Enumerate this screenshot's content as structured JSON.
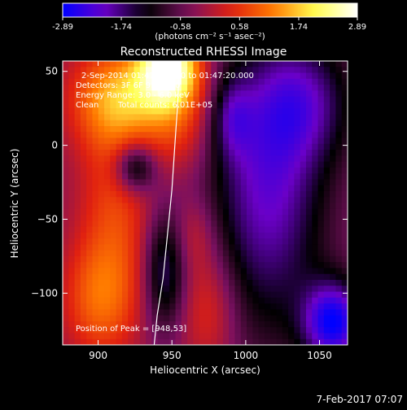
{
  "colorbar": {
    "tick_labels": [
      "-2.89",
      "-1.74",
      "-0.58",
      "0.58",
      "1.74",
      "2.89"
    ],
    "min": -2.89,
    "max": 2.89,
    "unit_label": "(photons cm⁻² s⁻¹ asec⁻²)",
    "colors": [
      "#0000ff",
      "#6a00c8",
      "#000000",
      "#7a1060",
      "#e02010",
      "#ff7a00",
      "#ffff50",
      "#ffffff"
    ]
  },
  "chart_data": {
    "type": "heatmap",
    "title": "Reconstructed RHESSI Image",
    "xlabel": "Heliocentric X (arcsec)",
    "ylabel": "Heliocentric Y (arcsec)",
    "xlim": [
      876,
      1069
    ],
    "ylim": [
      -135,
      57
    ],
    "x_ticks": [
      900,
      950,
      1000,
      1050
    ],
    "y_ticks": [
      50,
      0,
      -50,
      -100
    ],
    "x_tick_labels": [
      "900",
      "950",
      "1000",
      "1050"
    ],
    "y_tick_labels": [
      "50",
      "0",
      "−50",
      "−100"
    ],
    "annotations": [
      "2-Sep-2014 01:47:20.000 to 01:47:20.000",
      "Detectors: 3F 6F 9F, Att 0",
      "Energy Range: 3.0 - 6.0 keV",
      "Clean",
      "Total counts: 6.01E+05"
    ],
    "peak_label": "Position of Peak = [948,53]",
    "peak": [
      948,
      53
    ],
    "limb_line": [
      [
        955,
        57
      ],
      [
        954,
        30
      ],
      [
        952,
        0
      ],
      [
        950,
        -30
      ],
      [
        947,
        -60
      ],
      [
        944,
        -90
      ],
      [
        940,
        -115
      ],
      [
        938,
        -135
      ]
    ],
    "blobs": [
      {
        "x": 948,
        "y": 54,
        "sx": 14,
        "sy": 18,
        "v": 2.9
      },
      {
        "x": 935,
        "y": 35,
        "sx": 28,
        "sy": 22,
        "v": 1.3
      },
      {
        "x": 905,
        "y": 30,
        "sx": 20,
        "sy": 25,
        "v": 0.9
      },
      {
        "x": 955,
        "y": 5,
        "sx": 16,
        "sy": 20,
        "v": 0.6
      },
      {
        "x": 912,
        "y": -45,
        "sx": 18,
        "sy": 50,
        "v": 1.0
      },
      {
        "x": 900,
        "y": -105,
        "sx": 18,
        "sy": 28,
        "v": 1.1
      },
      {
        "x": 975,
        "y": -110,
        "sx": 14,
        "sy": 30,
        "v": 0.9
      },
      {
        "x": 965,
        "y": -60,
        "sx": 10,
        "sy": 18,
        "v": 0.55
      },
      {
        "x": 925,
        "y": -15,
        "sx": 10,
        "sy": 12,
        "v": -1.6
      },
      {
        "x": 945,
        "y": -85,
        "sx": 10,
        "sy": 28,
        "v": -1.4
      },
      {
        "x": 1015,
        "y": -30,
        "sx": 28,
        "sy": 70,
        "v": -1.8
      },
      {
        "x": 1040,
        "y": 30,
        "sx": 25,
        "sy": 30,
        "v": -1.2
      },
      {
        "x": 1060,
        "y": -120,
        "sx": 15,
        "sy": 20,
        "v": -2.4
      },
      {
        "x": 990,
        "y": 20,
        "sx": 10,
        "sy": 20,
        "v": -1.0
      }
    ]
  },
  "timestamp": "7-Feb-2017 07:07"
}
